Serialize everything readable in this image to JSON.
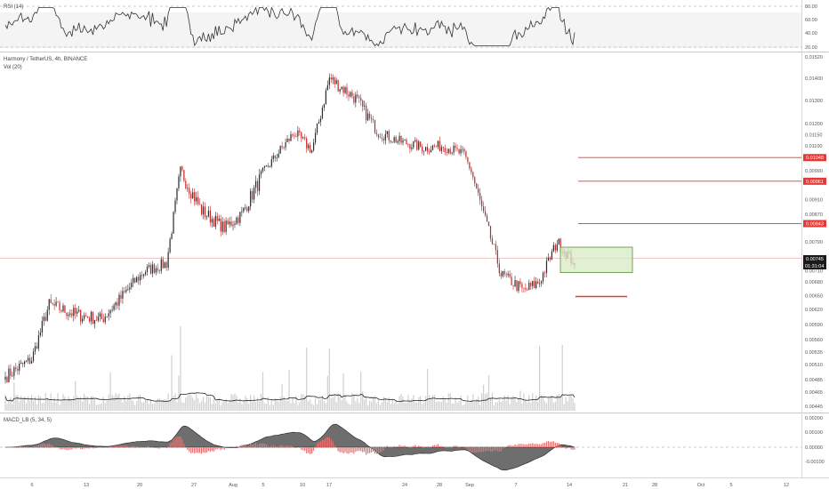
{
  "header": {
    "symbol_title": "Harmony / TetherUS, 4h, BINANCE",
    "volume_label": "Vol (20)",
    "rsi_label": "RSI (14)",
    "macd_label": "MACD_LB (5, 34, 5)"
  },
  "colors": {
    "up": "#2b2b2b",
    "down": "#c62828",
    "level_line": "#e53935",
    "badge": "#e53935",
    "box_fill": "#d7ebc4",
    "box_stroke": "#5a8f3c",
    "price_tag": "#1a1a1a",
    "volume": "#d0d0d0",
    "macd_pos": "#e57373",
    "macd_neg": "#e57373",
    "macd_area": "#555555"
  },
  "rsi_axis": [
    "80.00",
    "60.00",
    "40.00",
    "20.00"
  ],
  "price_axis": [
    "0.01520",
    "0.01400",
    "0.01300",
    "0.01200",
    "0.01150",
    "0.01100",
    "0.00990",
    "0.00910",
    "0.00870",
    "0.00790",
    "0.00745",
    "0.00710",
    "0.00680",
    "0.00650",
    "0.00620",
    "0.00590",
    "0.00560",
    "0.00535",
    "0.00510",
    "0.00485",
    "0.00465",
    "0.00445"
  ],
  "macd_axis": [
    "0.00200",
    "0.00100",
    "0.00000",
    "-0.00100"
  ],
  "price_tags": {
    "last_price": "0.00745",
    "countdown": "01:31:04"
  },
  "levels": [
    {
      "label": "0.01048",
      "price": 0.01048
    },
    {
      "label": "0.00961",
      "price": 0.00961
    },
    {
      "label": "0.00843",
      "price": 0.00843
    }
  ],
  "support_level": 0.00648,
  "x_axis": [
    "6",
    "13",
    "20",
    "27",
    "Aug",
    "5",
    "10",
    "17",
    "24",
    "28",
    "Sep",
    "7",
    "14",
    "21",
    "28",
    "Oct",
    "5",
    "12"
  ],
  "chart_data": {
    "type": "candlestick",
    "title": "Harmony / TetherUS, 4h, BINANCE",
    "x_unit": "4h candles",
    "price_anchors": [
      [
        0,
        0.0049
      ],
      [
        15,
        0.0052
      ],
      [
        25,
        0.0063
      ],
      [
        40,
        0.0061
      ],
      [
        55,
        0.006
      ],
      [
        65,
        0.0064
      ],
      [
        80,
        0.0071
      ],
      [
        92,
        0.0073
      ],
      [
        100,
        0.0099
      ],
      [
        112,
        0.0088
      ],
      [
        125,
        0.0083
      ],
      [
        135,
        0.0087
      ],
      [
        150,
        0.0101
      ],
      [
        165,
        0.0116
      ],
      [
        175,
        0.0108
      ],
      [
        185,
        0.014
      ],
      [
        200,
        0.0131
      ],
      [
        213,
        0.0116
      ],
      [
        225,
        0.0112
      ],
      [
        240,
        0.0109
      ],
      [
        250,
        0.011
      ],
      [
        262,
        0.0106
      ],
      [
        270,
        0.0092
      ],
      [
        283,
        0.007
      ],
      [
        296,
        0.0066
      ],
      [
        305,
        0.0068
      ],
      [
        315,
        0.0079
      ],
      [
        325,
        0.0073
      ]
    ],
    "candle_count": 326,
    "levels": [
      0.01048,
      0.00961,
      0.00843
    ],
    "support": 0.00648,
    "zone": {
      "low": 0.00705,
      "high": 0.00775
    },
    "last_price": 0.00745,
    "rsi_range": [
      20,
      80
    ],
    "macd_range": [
      -0.0012,
      0.002
    ]
  }
}
